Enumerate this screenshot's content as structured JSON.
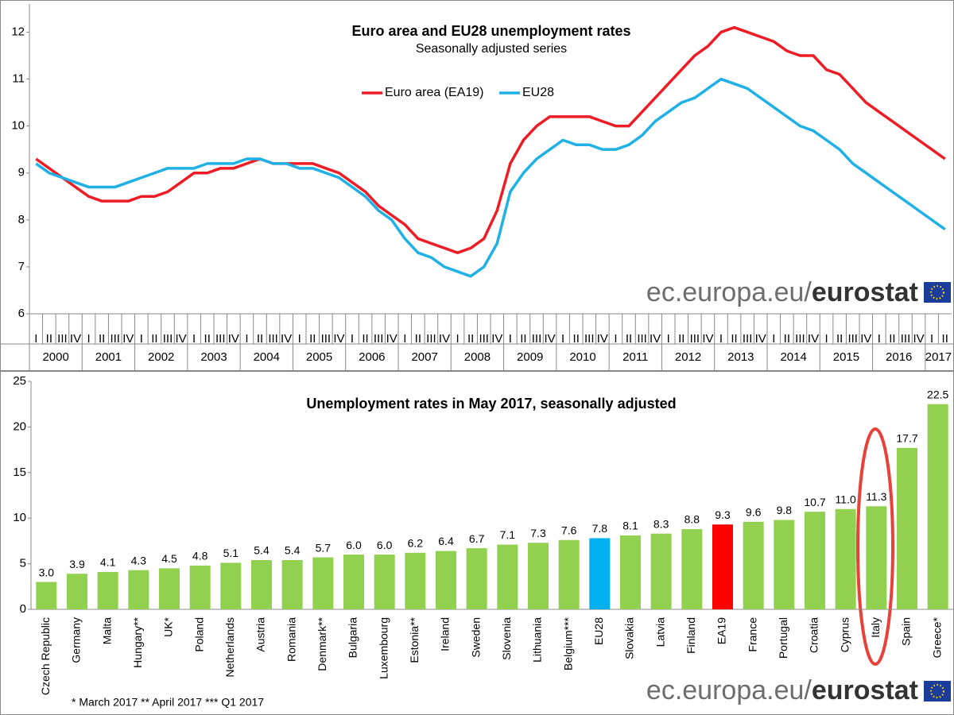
{
  "chart_data": [
    {
      "type": "line",
      "title": "Euro area and EU28 unemployment rates",
      "subtitle": "Seasonally adjusted series",
      "categories": [
        "I",
        "II",
        "III",
        "IV",
        "I",
        "II",
        "III",
        "IV",
        "I",
        "II",
        "III",
        "IV",
        "I",
        "II",
        "III",
        "IV",
        "I",
        "II",
        "III",
        "IV",
        "I",
        "II",
        "III",
        "IV",
        "I",
        "II",
        "III",
        "IV",
        "I",
        "II",
        "III",
        "IV",
        "I",
        "II",
        "III",
        "IV",
        "I",
        "II",
        "III",
        "IV",
        "I",
        "II",
        "III",
        "IV",
        "I",
        "II",
        "III",
        "IV",
        "I",
        "II",
        "III",
        "IV",
        "I",
        "II",
        "III",
        "IV",
        "I",
        "II",
        "III",
        "IV",
        "I",
        "II",
        "III",
        "IV",
        "I",
        "II",
        "III",
        "IV",
        "I",
        "II"
      ],
      "years": [
        "2000",
        "2001",
        "2002",
        "2003",
        "2004",
        "2005",
        "2006",
        "2007",
        "2008",
        "2009",
        "2010",
        "2011",
        "2012",
        "2013",
        "2014",
        "2015",
        "2016",
        "2017"
      ],
      "series": [
        {
          "name": "Euro area (EA19)",
          "color": "#ee1c25",
          "values": [
            9.3,
            9.1,
            8.9,
            8.7,
            8.5,
            8.4,
            8.4,
            8.4,
            8.5,
            8.5,
            8.6,
            8.8,
            9.0,
            9.0,
            9.1,
            9.1,
            9.2,
            9.3,
            9.2,
            9.2,
            9.2,
            9.2,
            9.1,
            9.0,
            8.8,
            8.6,
            8.3,
            8.1,
            7.9,
            7.6,
            7.5,
            7.4,
            7.3,
            7.4,
            7.6,
            8.2,
            9.2,
            9.7,
            10.0,
            10.2,
            10.2,
            10.2,
            10.2,
            10.1,
            10.0,
            10.0,
            10.3,
            10.6,
            10.9,
            11.2,
            11.5,
            11.7,
            12.0,
            12.1,
            12.0,
            11.9,
            11.8,
            11.6,
            11.5,
            11.5,
            11.2,
            11.1,
            10.8,
            10.5,
            10.3,
            10.1,
            9.9,
            9.7,
            9.5,
            9.3
          ]
        },
        {
          "name": "EU28",
          "color": "#1fb1e6",
          "values": [
            9.2,
            9.0,
            8.9,
            8.8,
            8.7,
            8.7,
            8.7,
            8.8,
            8.9,
            9.0,
            9.1,
            9.1,
            9.1,
            9.2,
            9.2,
            9.2,
            9.3,
            9.3,
            9.2,
            9.2,
            9.1,
            9.1,
            9.0,
            8.9,
            8.7,
            8.5,
            8.2,
            8.0,
            7.6,
            7.3,
            7.2,
            7.0,
            6.9,
            6.8,
            7.0,
            7.5,
            8.6,
            9.0,
            9.3,
            9.5,
            9.7,
            9.6,
            9.6,
            9.5,
            9.5,
            9.6,
            9.8,
            10.1,
            10.3,
            10.5,
            10.6,
            10.8,
            11.0,
            10.9,
            10.8,
            10.6,
            10.4,
            10.2,
            10.0,
            9.9,
            9.7,
            9.5,
            9.2,
            9.0,
            8.8,
            8.6,
            8.4,
            8.2,
            8.0,
            7.8
          ]
        }
      ],
      "ylim": [
        6,
        12.6
      ],
      "yticks": [
        6,
        7,
        8,
        9,
        10,
        11,
        12
      ],
      "grid": false,
      "source": [
        "ec.europa.eu/",
        "eurostat"
      ]
    },
    {
      "type": "bar",
      "title": "Unemployment rates in May 2017, seasonally adjusted",
      "categories": [
        "Czech Republic",
        "Germany",
        "Malta",
        "Hungary**",
        "UK*",
        "Poland",
        "Netherlands",
        "Austria",
        "Romania",
        "Denmark**",
        "Bulgaria",
        "Luxembourg",
        "Estonia**",
        "Ireland",
        "Sweden",
        "Slovenia",
        "Lithuania",
        "Belgium***",
        "EU28",
        "Slovakia",
        "Latvia",
        "Finland",
        "EA19",
        "France",
        "Portugal",
        "Croatia",
        "Cyprus",
        "Italy",
        "Spain",
        "Greece*"
      ],
      "values": [
        3.0,
        3.9,
        4.1,
        4.3,
        4.5,
        4.8,
        5.1,
        5.4,
        5.4,
        5.7,
        6.0,
        6.0,
        6.2,
        6.4,
        6.7,
        7.1,
        7.3,
        7.6,
        7.8,
        8.1,
        8.3,
        8.8,
        9.3,
        9.6,
        9.8,
        10.7,
        11.0,
        11.3,
        17.7,
        22.5
      ],
      "value_labels": [
        "3.0",
        "3.9",
        "4.1",
        "4.3",
        "4.5",
        "4.8",
        "5.1",
        "5.4",
        "5.4",
        "5.7",
        "6.0",
        "6.0",
        "6.2",
        "6.4",
        "6.7",
        "7.1",
        "7.3",
        "7.6",
        "7.8",
        "8.1",
        "8.3",
        "8.8",
        "9.3",
        "9.6",
        "9.8",
        "10.7",
        "11.0",
        "11.3",
        "17.7",
        "22.5"
      ],
      "colors": [
        "#92d050",
        "#92d050",
        "#92d050",
        "#92d050",
        "#92d050",
        "#92d050",
        "#92d050",
        "#92d050",
        "#92d050",
        "#92d050",
        "#92d050",
        "#92d050",
        "#92d050",
        "#92d050",
        "#92d050",
        "#92d050",
        "#92d050",
        "#92d050",
        "#00b0f0",
        "#92d050",
        "#92d050",
        "#92d050",
        "#ff0000",
        "#92d050",
        "#92d050",
        "#92d050",
        "#92d050",
        "#92d050",
        "#92d050",
        "#92d050"
      ],
      "ylim": [
        0,
        25
      ],
      "yticks": [
        0,
        5,
        10,
        15,
        20,
        25
      ],
      "grid": false,
      "footnote": "* March 2017    ** April 2017    *** Q1 2017",
      "source": [
        "ec.europa.eu/",
        "eurostat"
      ]
    }
  ]
}
